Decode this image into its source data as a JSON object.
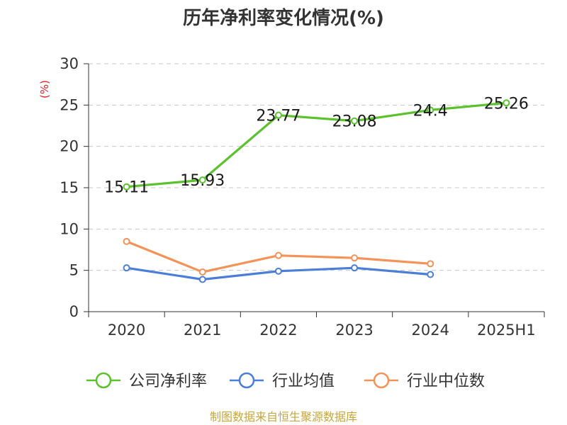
{
  "chart_data": {
    "type": "line",
    "title": "历年净利率变化情况(%)",
    "unit_label": "(%)",
    "categories": [
      "2020",
      "2021",
      "2022",
      "2023",
      "2024",
      "2025H1"
    ],
    "ylim": [
      0,
      30
    ],
    "yticks": [
      "0",
      "5",
      "10",
      "15",
      "20",
      "25",
      "30"
    ],
    "grid": true,
    "legend_position": "bottom",
    "series": [
      {
        "name": "公司净利率",
        "color": "#5bc22e",
        "values": [
          15.11,
          15.93,
          23.77,
          23.08,
          24.4,
          25.26
        ],
        "labels": [
          "15.11",
          "15.93",
          "23.77",
          "23.08",
          "24.4",
          "25.26"
        ]
      },
      {
        "name": "行业均值",
        "color": "#4a7ed8",
        "values": [
          5.3,
          3.9,
          4.9,
          5.3,
          4.5,
          null
        ]
      },
      {
        "name": "行业中位数",
        "color": "#f49257",
        "values": [
          8.5,
          4.8,
          6.8,
          6.5,
          5.8,
          null
        ]
      }
    ]
  },
  "footer": {
    "source": "制图数据来自恒生聚源数据库"
  }
}
